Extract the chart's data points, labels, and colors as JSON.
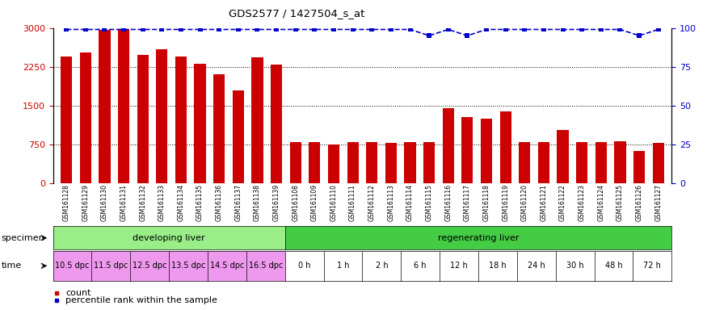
{
  "title": "GDS2577 / 1427504_s_at",
  "gsm_labels": [
    "GSM161128",
    "GSM161129",
    "GSM161130",
    "GSM161131",
    "GSM161132",
    "GSM161133",
    "GSM161134",
    "GSM161135",
    "GSM161136",
    "GSM161137",
    "GSM161138",
    "GSM161139",
    "GSM161108",
    "GSM161109",
    "GSM161110",
    "GSM161111",
    "GSM161112",
    "GSM161113",
    "GSM161114",
    "GSM161115",
    "GSM161116",
    "GSM161117",
    "GSM161118",
    "GSM161119",
    "GSM161120",
    "GSM161121",
    "GSM161122",
    "GSM161123",
    "GSM161124",
    "GSM161125",
    "GSM161126",
    "GSM161127"
  ],
  "counts": [
    2440,
    2530,
    2960,
    2980,
    2480,
    2580,
    2440,
    2310,
    2100,
    1790,
    2430,
    2290,
    790,
    790,
    740,
    790,
    790,
    770,
    790,
    790,
    1440,
    1270,
    1240,
    1380,
    790,
    790,
    1020,
    790,
    790,
    800,
    620,
    780
  ],
  "percentile": [
    99,
    99,
    99,
    99,
    99,
    99,
    99,
    99,
    99,
    99,
    99,
    99,
    99,
    99,
    99,
    99,
    99,
    99,
    99,
    95,
    99,
    95,
    99,
    99,
    99,
    99,
    99,
    99,
    99,
    99,
    95,
    99
  ],
  "bar_color": "#cc0000",
  "percentile_color": "#0000cc",
  "ylim_left": [
    0,
    3000
  ],
  "ylim_right": [
    0,
    100
  ],
  "yticks_left": [
    0,
    750,
    1500,
    2250,
    3000
  ],
  "yticks_right": [
    0,
    25,
    50,
    75,
    100
  ],
  "developing_liver_count": 12,
  "regenerating_liver_count": 20,
  "time_labels_dev": [
    "10.5 dpc",
    "11.5 dpc",
    "12.5 dpc",
    "13.5 dpc",
    "14.5 dpc",
    "16.5 dpc"
  ],
  "time_labels_regen": [
    "0 h",
    "1 h",
    "2 h",
    "6 h",
    "12 h",
    "18 h",
    "24 h",
    "30 h",
    "48 h",
    "72 h"
  ],
  "dev_color": "#99ee88",
  "regen_color": "#44cc44",
  "time_dev_color": "#ee99ee",
  "time_regen_color": "#ffffff",
  "specimen_label": "specimen",
  "time_label": "time",
  "legend_count_label": "count",
  "legend_pct_label": "percentile rank within the sample",
  "background_color": "#ffffff",
  "dev_bars_per_time": 2,
  "regen_bars_per_time": 2
}
